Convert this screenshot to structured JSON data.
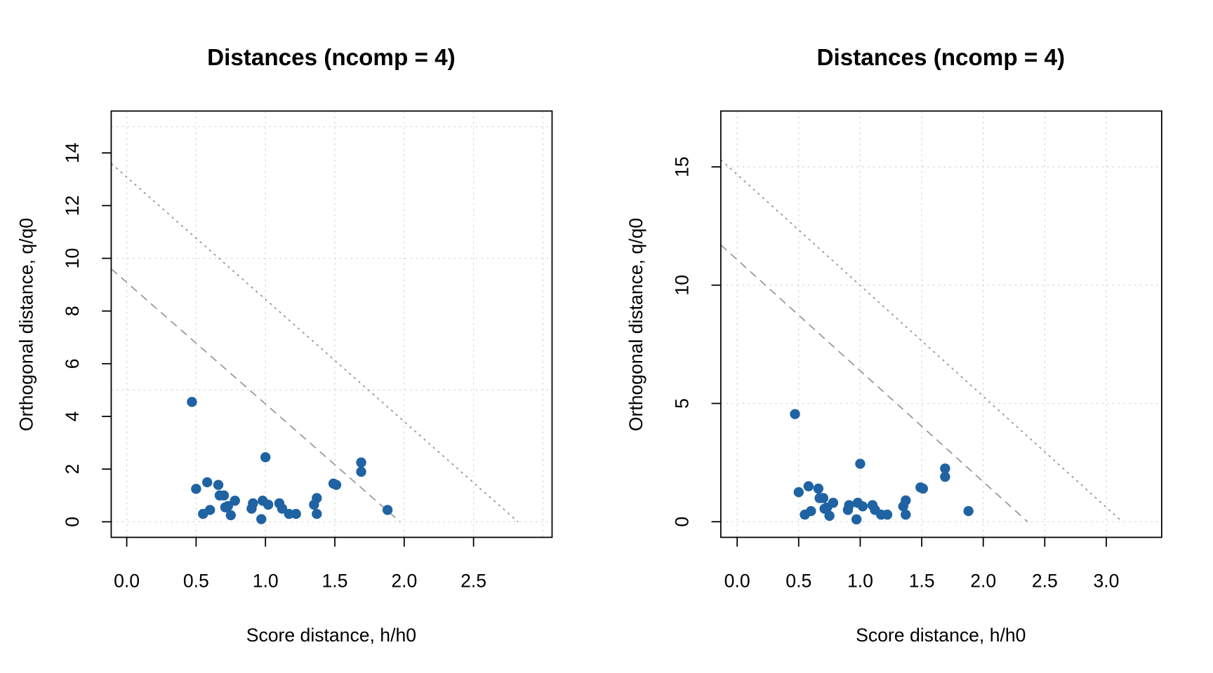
{
  "chart_data": [
    {
      "type": "scatter",
      "title": "Distances (ncomp = 4)",
      "xlabel": "Score distance, h/h0",
      "ylabel": "Orthogonal distance, q/q0",
      "xlim": [
        -0.112,
        3.066
      ],
      "ylim": [
        -0.59,
        15.59
      ],
      "xticks": [
        0.0,
        0.5,
        1.0,
        1.5,
        2.0,
        2.5
      ],
      "xtick_labels": [
        "0.0",
        "0.5",
        "1.0",
        "1.5",
        "2.0",
        "2.5"
      ],
      "yticks": [
        0,
        2,
        4,
        6,
        8,
        10,
        12,
        14
      ],
      "ytick_labels": [
        "0",
        "2",
        "4",
        "6",
        "8",
        "10",
        "12",
        "14"
      ],
      "xgrid": [
        0,
        0.5,
        1.0,
        1.5,
        2.0,
        2.5,
        3.0
      ],
      "ygrid": [
        0,
        5,
        10,
        15
      ],
      "grid": true,
      "point_color": "#1f63a3",
      "line_color": "#999999",
      "limit_lines": [
        {
          "name": "extreme-limit",
          "style": "dashed",
          "x": [
            -0.112,
            1.97
          ],
          "y": [
            9.6,
            0
          ]
        },
        {
          "name": "outlier-limit",
          "style": "dotted",
          "x": [
            -0.112,
            2.82
          ],
          "y": [
            13.6,
            0
          ]
        }
      ],
      "x": [
        0.47,
        0.5,
        0.58,
        0.55,
        0.6,
        0.66,
        0.67,
        0.7,
        0.71,
        0.73,
        0.75,
        0.78,
        0.9,
        0.91,
        0.97,
        0.98,
        1.0,
        1.02,
        1.1,
        1.12,
        1.17,
        1.22,
        1.35,
        1.37,
        1.37,
        1.49,
        1.51,
        1.69,
        1.69,
        1.88
      ],
      "y": [
        4.55,
        1.25,
        1.5,
        0.3,
        0.45,
        1.4,
        1.0,
        1.0,
        0.55,
        0.6,
        0.25,
        0.8,
        0.5,
        0.7,
        0.1,
        0.8,
        2.45,
        0.65,
        0.7,
        0.5,
        0.3,
        0.3,
        0.65,
        0.9,
        0.3,
        1.45,
        1.4,
        2.25,
        1.9,
        0.45
      ]
    },
    {
      "type": "scatter",
      "title": "Distances (ncomp = 4)",
      "xlabel": "Score distance, h/h0",
      "ylabel": "Orthogonal distance, q/q0",
      "xlim": [
        -0.133,
        3.45
      ],
      "ylim": [
        -0.66,
        17.36
      ],
      "xticks": [
        0.0,
        0.5,
        1.0,
        1.5,
        2.0,
        2.5,
        3.0
      ],
      "xtick_labels": [
        "0.0",
        "0.5",
        "1.0",
        "1.5",
        "2.0",
        "2.5",
        "3.0"
      ],
      "yticks": [
        0,
        5,
        10,
        15
      ],
      "ytick_labels": [
        "0",
        "5",
        "10",
        "15"
      ],
      "xgrid": [
        0,
        0.5,
        1.0,
        1.5,
        2.0,
        2.5,
        3.0
      ],
      "ygrid": [
        0,
        5,
        10,
        15
      ],
      "grid": true,
      "point_color": "#1f63a3",
      "line_color": "#999999",
      "limit_lines": [
        {
          "name": "extreme-limit",
          "style": "dashed",
          "x": [
            -0.133,
            2.36
          ],
          "y": [
            11.7,
            0
          ]
        },
        {
          "name": "outlier-limit",
          "style": "dotted",
          "x": [
            -0.133,
            3.13
          ],
          "y": [
            15.3,
            0
          ]
        }
      ],
      "x": [
        0.47,
        0.5,
        0.58,
        0.55,
        0.6,
        0.66,
        0.67,
        0.7,
        0.71,
        0.73,
        0.75,
        0.78,
        0.9,
        0.91,
        0.97,
        0.98,
        1.0,
        1.02,
        1.1,
        1.12,
        1.17,
        1.22,
        1.35,
        1.37,
        1.37,
        1.49,
        1.51,
        1.69,
        1.69,
        1.88
      ],
      "y": [
        4.55,
        1.25,
        1.5,
        0.3,
        0.45,
        1.4,
        1.0,
        1.0,
        0.55,
        0.6,
        0.25,
        0.8,
        0.5,
        0.7,
        0.1,
        0.8,
        2.45,
        0.65,
        0.7,
        0.5,
        0.3,
        0.3,
        0.65,
        0.9,
        0.3,
        1.45,
        1.4,
        2.25,
        1.9,
        0.45
      ]
    }
  ]
}
